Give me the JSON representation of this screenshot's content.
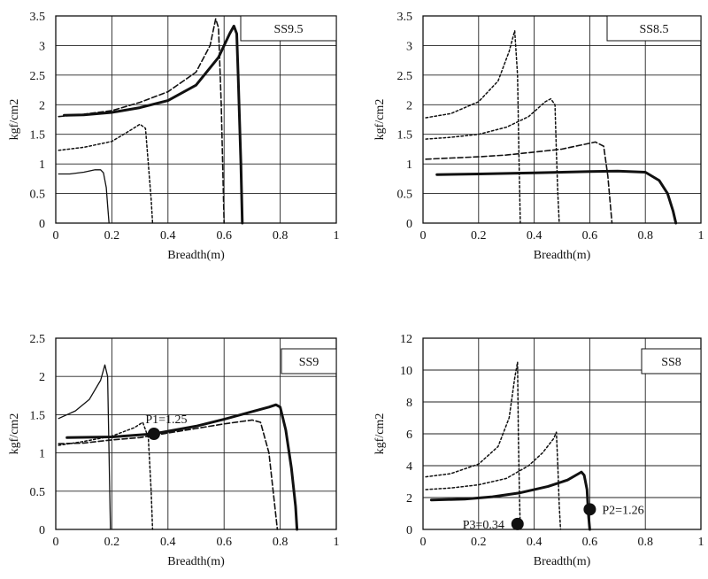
{
  "chart_data": [
    {
      "type": "line",
      "label": "SS9.5",
      "xlabel": "Breadth(m)",
      "ylabel": "kgf/cm2",
      "xlim": [
        0,
        1
      ],
      "ylim": [
        0,
        3.5
      ],
      "xticks": [
        0,
        0.2,
        0.4,
        0.6,
        0.8,
        1
      ],
      "yticks": [
        0,
        0.5,
        1,
        1.5,
        2,
        2.5,
        3,
        3.5
      ],
      "grid": true,
      "series": [
        {
          "style": "thin",
          "points": [
            [
              0.01,
              0.83
            ],
            [
              0.05,
              0.83
            ],
            [
              0.1,
              0.86
            ],
            [
              0.14,
              0.9
            ],
            [
              0.16,
              0.9
            ],
            [
              0.17,
              0.85
            ],
            [
              0.18,
              0.6
            ],
            [
              0.185,
              0.3
            ],
            [
              0.19,
              0
            ]
          ]
        },
        {
          "style": "dotted",
          "points": [
            [
              0.01,
              1.23
            ],
            [
              0.1,
              1.28
            ],
            [
              0.2,
              1.38
            ],
            [
              0.27,
              1.58
            ],
            [
              0.3,
              1.67
            ],
            [
              0.32,
              1.6
            ],
            [
              0.33,
              1.0
            ],
            [
              0.34,
              0.4
            ],
            [
              0.345,
              0
            ]
          ]
        },
        {
          "style": "dashed",
          "points": [
            [
              0.01,
              1.8
            ],
            [
              0.1,
              1.84
            ],
            [
              0.2,
              1.9
            ],
            [
              0.3,
              2.04
            ],
            [
              0.4,
              2.22
            ],
            [
              0.5,
              2.55
            ],
            [
              0.55,
              3.0
            ],
            [
              0.57,
              3.45
            ],
            [
              0.58,
              3.3
            ],
            [
              0.59,
              2.0
            ],
            [
              0.6,
              0
            ]
          ]
        },
        {
          "style": "thick",
          "points": [
            [
              0.03,
              1.82
            ],
            [
              0.1,
              1.83
            ],
            [
              0.2,
              1.87
            ],
            [
              0.3,
              1.95
            ],
            [
              0.4,
              2.07
            ],
            [
              0.5,
              2.33
            ],
            [
              0.58,
              2.8
            ],
            [
              0.62,
              3.2
            ],
            [
              0.635,
              3.33
            ],
            [
              0.645,
              3.2
            ],
            [
              0.65,
              2.5
            ],
            [
              0.66,
              1.0
            ],
            [
              0.665,
              0
            ]
          ]
        }
      ]
    },
    {
      "type": "line",
      "label": "SS8.5",
      "xlabel": "Breadth(m)",
      "ylabel": "kgf/cm2",
      "xlim": [
        0,
        1
      ],
      "ylim": [
        0,
        3.5
      ],
      "xticks": [
        0,
        0.2,
        0.4,
        0.6,
        0.8,
        1
      ],
      "yticks": [
        0,
        0.5,
        1,
        1.5,
        2,
        2.5,
        3,
        3.5
      ],
      "grid": true,
      "series": [
        {
          "style": "dotted",
          "points": [
            [
              0.01,
              1.78
            ],
            [
              0.1,
              1.85
            ],
            [
              0.2,
              2.05
            ],
            [
              0.27,
              2.4
            ],
            [
              0.31,
              2.9
            ],
            [
              0.33,
              3.25
            ],
            [
              0.34,
              2.5
            ],
            [
              0.345,
              1.2
            ],
            [
              0.35,
              0
            ]
          ]
        },
        {
          "style": "dotted",
          "points": [
            [
              0.01,
              1.42
            ],
            [
              0.1,
              1.45
            ],
            [
              0.2,
              1.5
            ],
            [
              0.3,
              1.62
            ],
            [
              0.38,
              1.8
            ],
            [
              0.44,
              2.05
            ],
            [
              0.46,
              2.1
            ],
            [
              0.475,
              2.0
            ],
            [
              0.48,
              1.2
            ],
            [
              0.485,
              0.5
            ],
            [
              0.49,
              0
            ]
          ]
        },
        {
          "style": "dashed",
          "points": [
            [
              0.01,
              1.08
            ],
            [
              0.1,
              1.1
            ],
            [
              0.2,
              1.12
            ],
            [
              0.3,
              1.15
            ],
            [
              0.4,
              1.2
            ],
            [
              0.5,
              1.25
            ],
            [
              0.58,
              1.33
            ],
            [
              0.62,
              1.37
            ],
            [
              0.65,
              1.3
            ],
            [
              0.665,
              0.8
            ],
            [
              0.68,
              0
            ]
          ]
        },
        {
          "style": "thick",
          "points": [
            [
              0.05,
              0.82
            ],
            [
              0.2,
              0.83
            ],
            [
              0.4,
              0.85
            ],
            [
              0.6,
              0.87
            ],
            [
              0.7,
              0.88
            ],
            [
              0.8,
              0.86
            ],
            [
              0.85,
              0.72
            ],
            [
              0.88,
              0.5
            ],
            [
              0.9,
              0.2
            ],
            [
              0.91,
              0
            ]
          ]
        }
      ]
    },
    {
      "type": "line",
      "label": "SS9",
      "xlabel": "Breadth(m)",
      "ylabel": "kgf/cm2",
      "xlim": [
        0,
        1
      ],
      "ylim": [
        0,
        2.5
      ],
      "xticks": [
        0,
        0.2,
        0.4,
        0.6,
        0.8,
        1
      ],
      "yticks": [
        0,
        0.5,
        1,
        1.5,
        2,
        2.5
      ],
      "grid": true,
      "annotations": [
        {
          "text": "P1=1.25",
          "x": 0.35,
          "y": 1.25
        }
      ],
      "series": [
        {
          "style": "thin",
          "points": [
            [
              0.01,
              1.45
            ],
            [
              0.07,
              1.55
            ],
            [
              0.12,
              1.7
            ],
            [
              0.16,
              1.95
            ],
            [
              0.175,
              2.15
            ],
            [
              0.185,
              2.0
            ],
            [
              0.19,
              1.0
            ],
            [
              0.195,
              0
            ]
          ]
        },
        {
          "style": "dotted",
          "points": [
            [
              0.01,
              1.1
            ],
            [
              0.1,
              1.15
            ],
            [
              0.2,
              1.22
            ],
            [
              0.28,
              1.33
            ],
            [
              0.31,
              1.4
            ],
            [
              0.33,
              1.2
            ],
            [
              0.34,
              0.5
            ],
            [
              0.345,
              0
            ]
          ]
        },
        {
          "style": "dashed",
          "points": [
            [
              0.01,
              1.12
            ],
            [
              0.1,
              1.13
            ],
            [
              0.2,
              1.17
            ],
            [
              0.3,
              1.2
            ],
            [
              0.4,
              1.26
            ],
            [
              0.5,
              1.32
            ],
            [
              0.6,
              1.38
            ],
            [
              0.7,
              1.43
            ],
            [
              0.73,
              1.4
            ],
            [
              0.76,
              1.0
            ],
            [
              0.79,
              0
            ]
          ]
        },
        {
          "style": "thick",
          "points": [
            [
              0.04,
              1.2
            ],
            [
              0.2,
              1.21
            ],
            [
              0.35,
              1.25
            ],
            [
              0.5,
              1.35
            ],
            [
              0.6,
              1.44
            ],
            [
              0.7,
              1.54
            ],
            [
              0.76,
              1.6
            ],
            [
              0.785,
              1.63
            ],
            [
              0.8,
              1.6
            ],
            [
              0.82,
              1.3
            ],
            [
              0.84,
              0.8
            ],
            [
              0.855,
              0.3
            ],
            [
              0.86,
              0
            ]
          ]
        }
      ]
    },
    {
      "type": "line",
      "label": "SS8",
      "xlabel": "Breadth(m)",
      "ylabel": "kgf/cm2",
      "xlim": [
        0,
        1
      ],
      "ylim": [
        0,
        12
      ],
      "xticks": [
        0,
        0.2,
        0.4,
        0.6,
        0.8,
        1
      ],
      "yticks": [
        0,
        2,
        4,
        6,
        8,
        10,
        12
      ],
      "grid": true,
      "annotations": [
        {
          "text": "P3=0.34",
          "x": 0.34,
          "y": 0.34
        },
        {
          "text": "P2=1.26",
          "x": 0.6,
          "y": 1.26
        }
      ],
      "series": [
        {
          "style": "dotted",
          "points": [
            [
              0.01,
              3.3
            ],
            [
              0.1,
              3.5
            ],
            [
              0.2,
              4.1
            ],
            [
              0.27,
              5.2
            ],
            [
              0.31,
              7.0
            ],
            [
              0.33,
              9.5
            ],
            [
              0.34,
              10.5
            ],
            [
              0.343,
              6.0
            ],
            [
              0.347,
              2.0
            ],
            [
              0.35,
              0
            ]
          ]
        },
        {
          "style": "dotted",
          "points": [
            [
              0.01,
              2.5
            ],
            [
              0.1,
              2.6
            ],
            [
              0.2,
              2.8
            ],
            [
              0.3,
              3.2
            ],
            [
              0.38,
              4.0
            ],
            [
              0.43,
              4.8
            ],
            [
              0.47,
              5.7
            ],
            [
              0.48,
              6.1
            ],
            [
              0.485,
              4.0
            ],
            [
              0.49,
              1.5
            ],
            [
              0.495,
              0
            ]
          ]
        },
        {
          "style": "thick",
          "points": [
            [
              0.03,
              1.85
            ],
            [
              0.15,
              1.9
            ],
            [
              0.25,
              2.05
            ],
            [
              0.35,
              2.3
            ],
            [
              0.45,
              2.7
            ],
            [
              0.52,
              3.1
            ],
            [
              0.56,
              3.5
            ],
            [
              0.57,
              3.6
            ],
            [
              0.58,
              3.4
            ],
            [
              0.59,
              2.5
            ],
            [
              0.595,
              1.0
            ],
            [
              0.6,
              0
            ]
          ]
        }
      ]
    }
  ]
}
